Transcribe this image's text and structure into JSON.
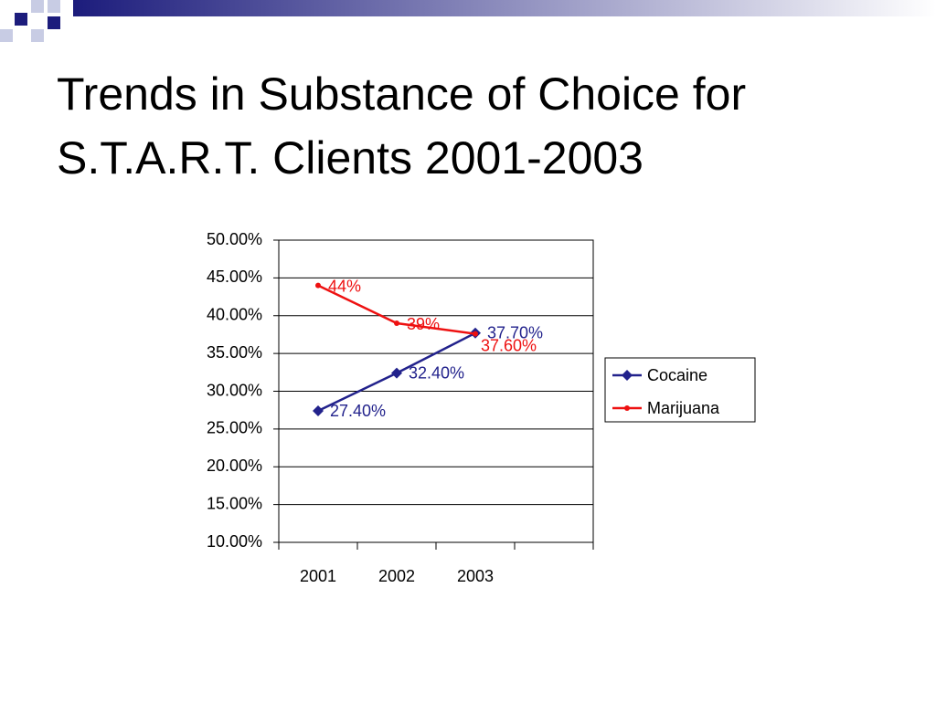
{
  "chart_data": {
    "type": "line",
    "title": "Trends in Substance of Choice for S.T.A.R.T. Clients 2001-2003",
    "categories": [
      "2001",
      "2002",
      "2003",
      null
    ],
    "series": [
      {
        "name": "Cocaine",
        "color": "#22228c",
        "marker": "diamond",
        "values": [
          27.4,
          32.4,
          37.7,
          null
        ],
        "value_labels": [
          "27.40%",
          "32.40%",
          "37.70%",
          null
        ]
      },
      {
        "name": "Marijuana",
        "color": "#ee1111",
        "marker": "circle",
        "values": [
          44,
          39,
          37.6,
          null
        ],
        "value_labels": [
          "44%",
          "39%",
          "37.60%",
          null
        ]
      }
    ],
    "ylim": [
      10,
      50
    ],
    "yticks": [
      {
        "value": 10,
        "label": "10.00%"
      },
      {
        "value": 15,
        "label": "15.00%"
      },
      {
        "value": 20,
        "label": "20.00%"
      },
      {
        "value": 25,
        "label": "25.00%"
      },
      {
        "value": 30,
        "label": "30.00%"
      },
      {
        "value": 35,
        "label": "35.00%"
      },
      {
        "value": 40,
        "label": "40.00%"
      },
      {
        "value": 45,
        "label": "45.00%"
      },
      {
        "value": 50,
        "label": "50.00%"
      }
    ],
    "grid": true,
    "legend": "right"
  }
}
